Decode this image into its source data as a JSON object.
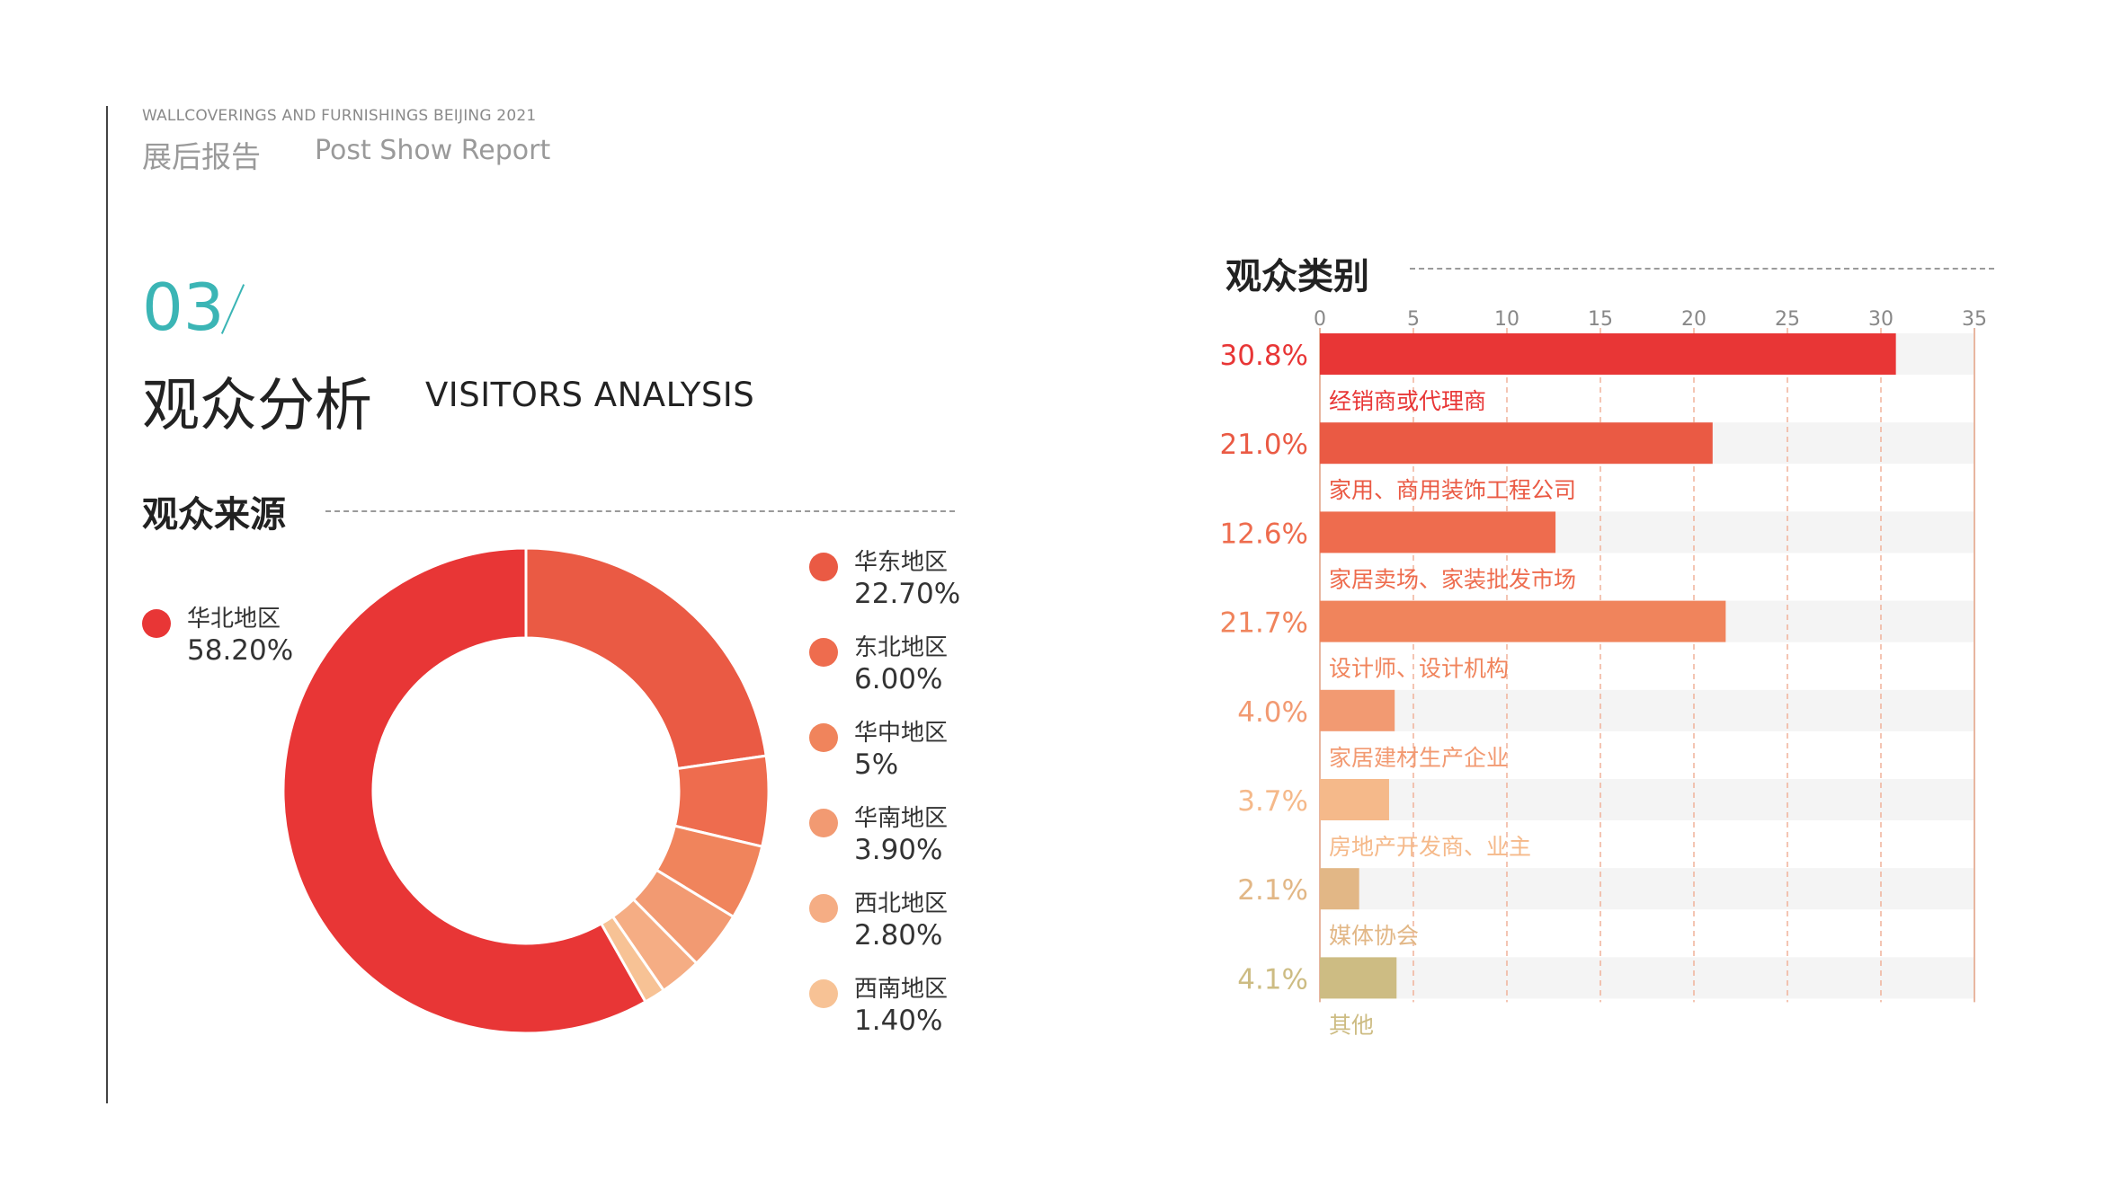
{
  "header": {
    "event_en": "WALLCOVERINGS AND FURNISHINGS BEIJING 2021",
    "report_cn": "展后报告",
    "report_en": "Post Show Report"
  },
  "section": {
    "number": "03",
    "title_cn": "观众分析",
    "title_en": "VISITORS ANALYSIS"
  },
  "chart_data": [
    {
      "type": "pie",
      "title": "观众来源",
      "donut": true,
      "legend_placement": "right",
      "slices": [
        {
          "name": "华北地区",
          "label": "58.20%",
          "value": 58.2,
          "color": "#e83636"
        },
        {
          "name": "华东地区",
          "label": "22.70%",
          "value": 22.7,
          "color": "#ea5a44"
        },
        {
          "name": "东北地区",
          "label": "6.00%",
          "value": 6.0,
          "color": "#ee6c4e"
        },
        {
          "name": "华中地区",
          "label": "5%",
          "value": 5.0,
          "color": "#f0845c"
        },
        {
          "name": "华南地区",
          "label": "3.90%",
          "value": 3.9,
          "color": "#f29a72"
        },
        {
          "name": "西北地区",
          "label": "2.80%",
          "value": 2.8,
          "color": "#f5ad84"
        },
        {
          "name": "西南地区",
          "label": "1.40%",
          "value": 1.4,
          "color": "#f7c295"
        }
      ]
    },
    {
      "type": "bar",
      "orientation": "horizontal",
      "title": "观众类别",
      "xlim": [
        0,
        35
      ],
      "ticks": [
        "0",
        "5",
        "10",
        "15",
        "20",
        "25",
        "30",
        "35"
      ],
      "grid": true,
      "categories": [
        "经销商或代理商",
        "家用、商用装饰工程公司",
        "家居卖场、家装批发市场",
        "设计师、设计机构",
        "家居建材生产企业",
        "房地产开发商、业主",
        "媒体协会",
        "其他"
      ],
      "values": [
        30.8,
        21.0,
        12.6,
        21.7,
        4.0,
        3.7,
        2.1,
        4.1
      ],
      "value_labels": [
        "30.8%",
        "21.0%",
        "12.6%",
        "21.7%",
        "4.0%",
        "3.7%",
        "2.1%",
        "4.1%"
      ],
      "colors": [
        "#e83636",
        "#ea5a44",
        "#ee6c4e",
        "#f0845c",
        "#f29a72",
        "#f5b98a",
        "#e2b786",
        "#cdbc83"
      ]
    }
  ]
}
